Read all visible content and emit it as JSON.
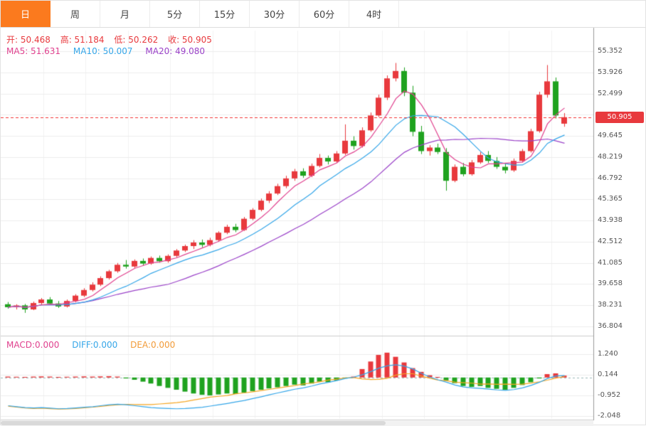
{
  "tabs": [
    {
      "label": "日",
      "active": true
    },
    {
      "label": "周",
      "active": false
    },
    {
      "label": "月",
      "active": false
    },
    {
      "label": "5分",
      "active": false
    },
    {
      "label": "15分",
      "active": false
    },
    {
      "label": "30分",
      "active": false
    },
    {
      "label": "60分",
      "active": false
    },
    {
      "label": "4时",
      "active": false
    }
  ],
  "ohlc": {
    "open": "开: 50.468",
    "high": "高: 51.184",
    "low": "低: 50.262",
    "close": "收: 50.905"
  },
  "ma_legend": {
    "ma5": "MA5: 51.631",
    "ma10": "MA10: 50.007",
    "ma20": "MA20: 49.080"
  },
  "macd_legend": {
    "macd": "MACD:0.000",
    "diff": "DIFF:0.000",
    "dea": "DEA:0.000"
  },
  "colors": {
    "up": "#e8393d",
    "down": "#1fa21f",
    "ma5": "#e0418e",
    "ma10": "#35a6e8",
    "ma20": "#9a42c8",
    "diff_line": "#35a6e8",
    "dea_line": "#f5a623",
    "price_line": "#f23131",
    "active_tab": "#fb7a1e",
    "grid": "#ededed",
    "axis_border": "#999999"
  },
  "chart_data": {
    "type": "candlestick",
    "title": "",
    "current_price": 50.905,
    "current_price_label": "50.905",
    "price_axis": {
      "min": 36.804,
      "max": 55.352,
      "labels": [
        {
          "t": "55.352",
          "v": 55.352
        },
        {
          "t": "53.926",
          "v": 53.926
        },
        {
          "t": "52.499",
          "v": 52.499
        },
        {
          "t": "49.645",
          "v": 49.645
        },
        {
          "t": "48.219",
          "v": 48.219
        },
        {
          "t": "46.792",
          "v": 46.792
        },
        {
          "t": "45.365",
          "v": 45.365
        },
        {
          "t": "43.938",
          "v": 43.938
        },
        {
          "t": "42.512",
          "v": 42.512
        },
        {
          "t": "41.085",
          "v": 41.085
        },
        {
          "t": "39.658",
          "v": 39.658
        },
        {
          "t": "38.231",
          "v": 38.231
        },
        {
          "t": "36.804",
          "v": 36.804
        }
      ]
    },
    "candles": [
      [
        38.3,
        38.45,
        38.0,
        38.1
      ],
      [
        38.1,
        38.3,
        37.95,
        38.22
      ],
      [
        38.22,
        38.32,
        37.72,
        37.95
      ],
      [
        37.95,
        38.48,
        37.9,
        38.38
      ],
      [
        38.38,
        38.72,
        38.28,
        38.62
      ],
      [
        38.62,
        38.78,
        38.25,
        38.35
      ],
      [
        38.35,
        38.52,
        38.05,
        38.15
      ],
      [
        38.15,
        38.62,
        38.08,
        38.52
      ],
      [
        38.52,
        38.98,
        38.42,
        38.88
      ],
      [
        38.88,
        39.38,
        38.78,
        39.26
      ],
      [
        39.26,
        39.78,
        39.16,
        39.62
      ],
      [
        39.62,
        40.18,
        39.52,
        40.06
      ],
      [
        40.06,
        40.62,
        39.96,
        40.52
      ],
      [
        40.52,
        41.08,
        40.42,
        40.96
      ],
      [
        40.96,
        41.28,
        40.7,
        40.84
      ],
      [
        40.84,
        41.32,
        40.74,
        41.22
      ],
      [
        41.22,
        41.38,
        40.9,
        41.04
      ],
      [
        41.04,
        41.52,
        40.96,
        41.42
      ],
      [
        41.42,
        41.58,
        41.1,
        41.2
      ],
      [
        41.2,
        41.66,
        41.1,
        41.56
      ],
      [
        41.56,
        42.02,
        41.46,
        41.92
      ],
      [
        41.92,
        42.32,
        41.82,
        42.22
      ],
      [
        42.22,
        42.62,
        42.02,
        42.46
      ],
      [
        42.46,
        42.66,
        42.14,
        42.3
      ],
      [
        42.3,
        42.78,
        42.2,
        42.62
      ],
      [
        42.62,
        43.22,
        42.52,
        43.12
      ],
      [
        43.12,
        43.66,
        43.02,
        43.52
      ],
      [
        43.52,
        43.72,
        43.16,
        43.3
      ],
      [
        43.3,
        44.18,
        43.24,
        44.06
      ],
      [
        44.06,
        44.78,
        43.96,
        44.66
      ],
      [
        44.66,
        45.42,
        44.56,
        45.28
      ],
      [
        45.28,
        45.92,
        45.12,
        45.76
      ],
      [
        45.76,
        46.42,
        45.66,
        46.26
      ],
      [
        46.26,
        46.96,
        46.12,
        46.78
      ],
      [
        46.78,
        47.42,
        46.62,
        47.26
      ],
      [
        47.26,
        47.46,
        46.82,
        46.96
      ],
      [
        46.96,
        47.78,
        46.86,
        47.62
      ],
      [
        47.62,
        48.42,
        47.52,
        48.16
      ],
      [
        48.16,
        48.32,
        47.72,
        47.92
      ],
      [
        47.92,
        48.62,
        47.82,
        48.46
      ],
      [
        48.46,
        50.42,
        48.36,
        49.32
      ],
      [
        49.32,
        49.62,
        48.72,
        48.96
      ],
      [
        48.96,
        50.22,
        48.86,
        50.02
      ],
      [
        50.02,
        51.22,
        49.92,
        51.02
      ],
      [
        51.02,
        52.42,
        50.92,
        52.22
      ],
      [
        52.22,
        53.72,
        52.06,
        53.52
      ],
      [
        53.52,
        54.56,
        53.32,
        54.02
      ],
      [
        54.02,
        54.26,
        52.32,
        52.56
      ],
      [
        52.56,
        53.02,
        49.62,
        49.92
      ],
      [
        49.92,
        50.32,
        48.42,
        48.62
      ],
      [
        48.62,
        49.02,
        48.32,
        48.86
      ],
      [
        48.86,
        49.12,
        48.42,
        48.56
      ],
      [
        48.56,
        48.82,
        45.95,
        46.62
      ],
      [
        46.62,
        47.72,
        46.52,
        47.56
      ],
      [
        47.56,
        47.82,
        46.92,
        47.06
      ],
      [
        47.06,
        48.02,
        46.96,
        47.86
      ],
      [
        47.86,
        48.56,
        47.76,
        48.36
      ],
      [
        48.36,
        48.62,
        47.82,
        47.96
      ],
      [
        47.96,
        48.22,
        47.42,
        47.56
      ],
      [
        47.56,
        47.82,
        47.12,
        47.32
      ],
      [
        47.32,
        48.12,
        47.22,
        47.96
      ],
      [
        47.96,
        48.76,
        47.86,
        48.62
      ],
      [
        48.62,
        50.12,
        48.52,
        49.96
      ],
      [
        49.96,
        52.62,
        49.86,
        52.42
      ],
      [
        52.42,
        54.42,
        52.22,
        53.32
      ],
      [
        53.32,
        53.58,
        50.82,
        51.02
      ],
      [
        50.468,
        51.184,
        50.262,
        50.905
      ]
    ],
    "macd": {
      "axis_labels": [
        {
          "t": "1.240",
          "v": 1.24
        },
        {
          "t": "0.144",
          "v": 0.144
        },
        {
          "t": "-0.952",
          "v": -0.952
        },
        {
          "t": "-2.048",
          "v": -2.048
        }
      ],
      "hist": [
        0.05,
        0.04,
        0.03,
        0.05,
        0.06,
        0.05,
        0.03,
        0.04,
        0.05,
        0.06,
        0.05,
        0.06,
        0.07,
        0.05,
        -0.05,
        -0.12,
        -0.22,
        -0.32,
        -0.45,
        -0.55,
        -0.65,
        -0.75,
        -0.85,
        -0.92,
        -0.95,
        -0.9,
        -0.85,
        -0.88,
        -0.8,
        -0.72,
        -0.65,
        -0.58,
        -0.52,
        -0.45,
        -0.38,
        -0.42,
        -0.32,
        -0.22,
        -0.25,
        -0.15,
        -0.05,
        0.05,
        0.45,
        0.85,
        1.2,
        1.32,
        1.1,
        0.8,
        0.5,
        0.3,
        0.12,
        0.03,
        -0.15,
        -0.3,
        -0.45,
        -0.5,
        -0.45,
        -0.55,
        -0.6,
        -0.65,
        -0.55,
        -0.4,
        -0.25,
        -0.05,
        0.18,
        0.22,
        0.1
      ],
      "diff": [
        -1.5,
        -1.55,
        -1.6,
        -1.62,
        -1.6,
        -1.63,
        -1.66,
        -1.65,
        -1.62,
        -1.58,
        -1.55,
        -1.5,
        -1.45,
        -1.42,
        -1.45,
        -1.5,
        -1.55,
        -1.6,
        -1.63,
        -1.65,
        -1.66,
        -1.65,
        -1.62,
        -1.58,
        -1.52,
        -1.45,
        -1.38,
        -1.3,
        -1.22,
        -1.12,
        -1.02,
        -0.92,
        -0.82,
        -0.72,
        -0.62,
        -0.55,
        -0.45,
        -0.34,
        -0.26,
        -0.16,
        -0.05,
        0.02,
        0.15,
        0.32,
        0.5,
        0.62,
        0.68,
        0.6,
        0.45,
        0.22,
        0.02,
        -0.12,
        -0.25,
        -0.4,
        -0.5,
        -0.55,
        -0.58,
        -0.62,
        -0.66,
        -0.68,
        -0.64,
        -0.55,
        -0.42,
        -0.25,
        -0.05,
        0.08,
        0.1
      ]
    }
  }
}
